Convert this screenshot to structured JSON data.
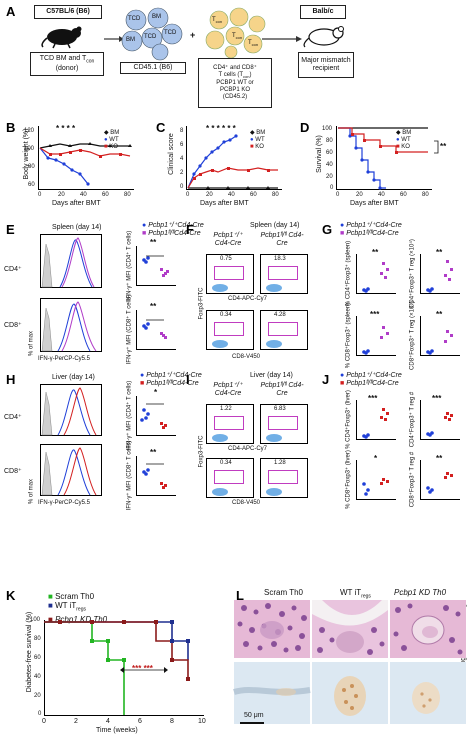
{
  "panel_labels": [
    "A",
    "B",
    "C",
    "D",
    "E",
    "F",
    "G",
    "H",
    "I",
    "J",
    "K",
    "L"
  ],
  "panelA": {
    "donor_strain": "C57BL/6 (B6)",
    "donor_text": "TCD BM and T",
    "donor_sub": "con",
    "donor_tail": " (donor)",
    "cells_label": "CD45.1 (B6)",
    "recipient_strain": "Balb/c",
    "recipient_text": "Major mismatch recipient",
    "tcon_lines": [
      "CD4⁺ and CD8⁺",
      "T cells (T",
      "con",
      ")",
      "PCBP1 WT or",
      "PCBP1 KO",
      "(CD45.2)"
    ],
    "cell_TCD": "TCD",
    "cell_BM": "BM",
    "cell_Tcon": "T",
    "cell_Tcon_sub": "con",
    "plus": "+"
  },
  "panelB": {
    "ylabel": "Body weight (%)",
    "xlabel": "Days after BMT",
    "yticks": [
      "120",
      "100",
      "80",
      "60"
    ],
    "xticks": [
      "0",
      "20",
      "40",
      "60",
      "80"
    ],
    "legend": [
      "BM",
      "WT",
      "KO"
    ],
    "stars": "* * * *"
  },
  "panelC": {
    "ylabel": "Clinical score",
    "xlabel": "Days after BMT",
    "yticks": [
      "8",
      "6",
      "4",
      "2",
      "0"
    ],
    "xticks": [
      "0",
      "20",
      "40",
      "60",
      "80"
    ],
    "legend": [
      "BM",
      "WT",
      "KO"
    ],
    "stars": "* * * * * *"
  },
  "panelD": {
    "ylabel": "Survival (%)",
    "xlabel": "Days after BMT",
    "yticks": [
      "100",
      "80",
      "60",
      "40",
      "20",
      "0"
    ],
    "xticks": [
      "0",
      "20",
      "40",
      "60",
      "80"
    ],
    "legend": [
      "BM",
      "WT",
      "KO"
    ],
    "sig": "**"
  },
  "panelE": {
    "title": "Spleen (day 14)",
    "legend": [
      "Pcbp1⁺/⁺Cd4-Cre",
      "Pcbp1ᶠˡ/ᶠˡCd4-Cre"
    ],
    "row1": "CD4⁺",
    "row2": "CD8⁺",
    "ylabel": "% of max",
    "xlabel": "IFN-γ-PerCP-Cy5.5",
    "dot_ylabel1": "IFN-γ⁺ MFI (CD4⁺ T cells)",
    "dot_ylabel2": "IFN-γ⁺ MFI (CD8⁺ T cells)",
    "sig1": "**",
    "sig2": "**"
  },
  "panelF": {
    "title": "Spleen (day 14)",
    "col1": "Pcbp1⁺/⁺ Cd4-Cre",
    "col2": "Pcbp1ᶠˡ/ᶠˡ Cd4-Cre",
    "gate_values": [
      "0.75",
      "18.3",
      "0.34",
      "4.28"
    ],
    "xlabel1": "CD4-APC-Cy7",
    "xlabel2": "CD8-V450",
    "ylabel": "Foxp3-FITC"
  },
  "panelG": {
    "legend": [
      "Pcbp1⁺/⁺Cd4-Cre",
      "Pcbp1ᶠˡ/ᶠˡCd4-Cre"
    ],
    "sigs": [
      "**",
      "**",
      "***",
      "**"
    ],
    "ylabels": [
      "% CD4⁺Foxp3⁺ (spleen)",
      "CD4⁺Foxp3⁺ T reg (×10⁴)",
      "% CD8⁺Foxp3⁺ (spleen)",
      "CD8⁺Foxp3⁺ T reg (×10⁴)"
    ]
  },
  "panelH": {
    "title": "Liver (day 14)",
    "legend": [
      "Pcbp1⁺/⁺Cd4-Cre",
      "Pcbp1ᶠˡ/ᶠˡCd4-Cre"
    ],
    "row1": "CD4⁺",
    "row2": "CD8⁺",
    "ylabel": "% of max",
    "xlabel": "IFN-γ-PerCP-Cy5.5",
    "dot_ylabel1": "IFN-γ⁺ MFI (CD4⁺ T cells)",
    "dot_ylabel2": "IFN-γ⁺ MFI (CD8⁺ T cells)",
    "sig1": "*",
    "sig2": "**"
  },
  "panelI": {
    "title": "Liver (day 14)",
    "col1": "Pcbp1⁺/⁺ Cd4-Cre",
    "col2": "Pcbp1ᶠˡ/ᶠˡ Cd4-Cre",
    "gate_values": [
      "1.22",
      "6.83",
      "0.34",
      "1.28"
    ],
    "xlabel1": "CD4-APC-Cy7",
    "xlabel2": "CD8-V450",
    "ylabel": "Foxp3-FITC"
  },
  "panelJ": {
    "legend": [
      "Pcbp1⁺/⁺Cd4-Cre",
      "Pcbp1ᶠˡ/ᶠˡCd4-Cre"
    ],
    "sigs": [
      "***",
      "***",
      "*",
      "**"
    ],
    "ylabels": [
      "% CD4⁺Foxp3⁺ (liver)",
      "CD4⁺Foxp3⁺ T reg #",
      "% CD8⁺Foxp3⁺ (liver)",
      "CD8⁺Foxp3⁺ T reg #"
    ]
  },
  "panelK": {
    "legend": [
      "Scram Th0",
      "WT iT",
      "regs",
      "Pcbp1 KD Th0"
    ],
    "ylabel": "Diabetes-free survival (%)",
    "xlabel": "Time (weeks)",
    "yticks": [
      "100",
      "80",
      "60",
      "40",
      "20",
      "0"
    ],
    "xticks": [
      "0",
      "2",
      "4",
      "6",
      "8",
      "10"
    ],
    "stars": "*** ***"
  },
  "panelL": {
    "col_labels": [
      "Scram Th0",
      "WT iT",
      "regs",
      "Pcbp1 KD Th0"
    ],
    "row_labels": [
      "H&E staining",
      "Insulin staining"
    ],
    "scale_bar": "50 μm"
  },
  "colors": {
    "blue": "#1f3fd8",
    "red": "#d32020",
    "black": "#111111",
    "magenta": "#b03cc8",
    "green": "#22b522",
    "darkred": "#8b1a1a",
    "navy": "#1f2f8f",
    "he_purple": "#7b3f8f",
    "he_pink": "#e6b9d6",
    "insulin_bg": "#dce8f2",
    "insulin_brown": "#c9915a"
  }
}
